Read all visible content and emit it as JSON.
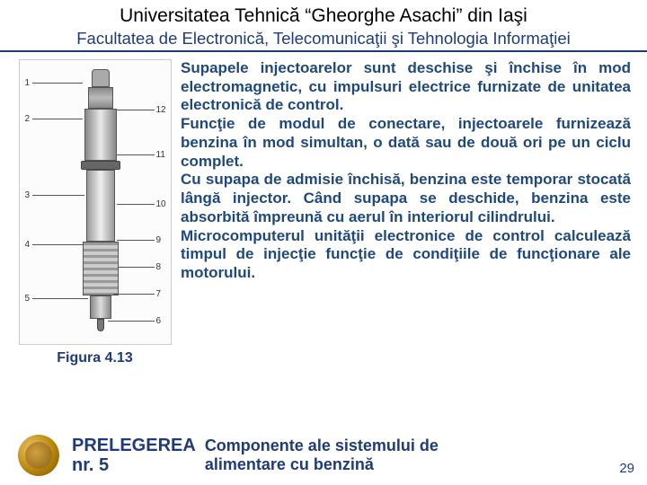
{
  "header": {
    "title": "Universitatea Tehnică “Gheorghe Asachi” din Iaşi",
    "subtitle": "Facultatea de Electronică, Telecomunicaţii şi Tehnologia Informaţiei"
  },
  "figure": {
    "caption": "Figura 4.13",
    "callouts_left": [
      "1",
      "2",
      "3",
      "4",
      "5"
    ],
    "callouts_right": [
      "12",
      "11",
      "10",
      "9",
      "8",
      "7",
      "6"
    ]
  },
  "body": {
    "text": "Supapele injectoarelor sunt deschise şi închise în mod electromagnetic, cu impulsuri electrice furnizate de unitatea electronică de control.\nFuncţie de modul de conectare, injectoarele furnizează benzina în mod simultan, o dată sau de două ori pe un ciclu complet.\nCu supapa de admisie închisă, benzina este temporar stocată lângă injector. Când supapa se deschide, benzina este absorbită împreună cu aerul în interiorul cilindrului.\nMicrocomputerul unităţii electronice de control calculează timpul de injecţie funcţie de condiţiile de funcţionare ale motorului."
  },
  "footer": {
    "lecture_label": "PRELEGEREA",
    "lecture_no": "nr. 5",
    "lecture_title_l1": "Componente ale sistemului de",
    "lecture_title_l2": "alimentare cu benzină",
    "page": "29"
  },
  "colors": {
    "accent": "#1f3b78",
    "body_text": "#1f497d"
  }
}
